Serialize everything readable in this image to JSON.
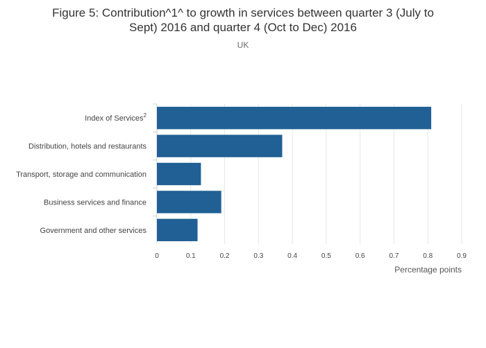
{
  "chart_data": {
    "type": "bar",
    "orientation": "horizontal",
    "title_line1": "Figure 5: Contribution^1^ to growth in services between quarter 3 (July to",
    "title_line2": "Sept) 2016 and quarter 4 (Oct to Dec) 2016",
    "subtitle": "UK",
    "xlabel": "Percentage points",
    "ylabel": "",
    "xlim": [
      0,
      0.9
    ],
    "ticks": [
      "0",
      "0.1",
      "0.2",
      "0.3",
      "0.4",
      "0.5",
      "0.6",
      "0.7",
      "0.8",
      "0.9"
    ],
    "categories": [
      {
        "label": "Index of Services",
        "superscript": "2"
      },
      {
        "label": "Distribution, hotels and restaurants",
        "superscript": ""
      },
      {
        "label": "Transport, storage and communication",
        "superscript": ""
      },
      {
        "label": "Business services and finance",
        "superscript": ""
      },
      {
        "label": "Government and other services",
        "superscript": ""
      }
    ],
    "values": [
      0.81,
      0.37,
      0.13,
      0.19,
      0.12
    ],
    "bar_color": "#206095",
    "grid": true
  }
}
